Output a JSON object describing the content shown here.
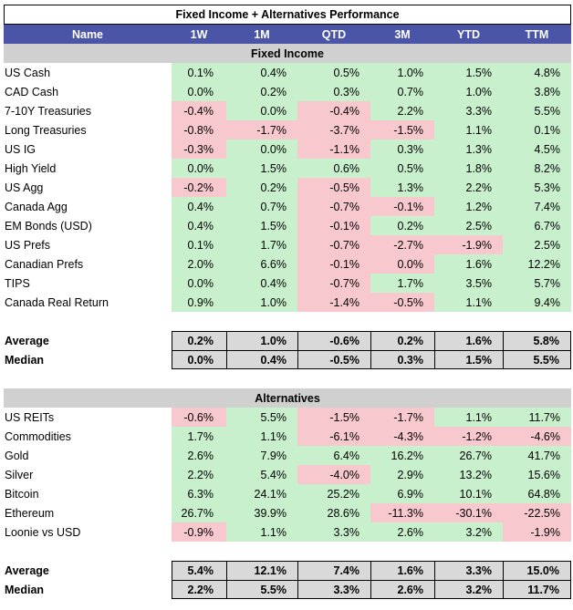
{
  "title": "Fixed Income + Alternatives Performance",
  "columns": [
    "Name",
    "1W",
    "1M",
    "QTD",
    "3M",
    "YTD",
    "TTM"
  ],
  "sections": [
    {
      "name": "Fixed Income",
      "rows": [
        {
          "name": "US Cash",
          "values": [
            "0.1%",
            "0.4%",
            "0.5%",
            "1.0%",
            "1.5%",
            "4.8%"
          ],
          "colors": [
            "g",
            "g",
            "g",
            "g",
            "g",
            "g"
          ]
        },
        {
          "name": "CAD Cash",
          "values": [
            "0.0%",
            "0.2%",
            "0.3%",
            "0.7%",
            "1.0%",
            "3.8%"
          ],
          "colors": [
            "g",
            "g",
            "g",
            "g",
            "g",
            "g"
          ]
        },
        {
          "name": "7-10Y Treasuries",
          "values": [
            "-0.4%",
            "0.0%",
            "-0.4%",
            "2.2%",
            "3.3%",
            "5.5%"
          ],
          "colors": [
            "r",
            "g",
            "r",
            "g",
            "g",
            "g"
          ]
        },
        {
          "name": "Long Treasuries",
          "values": [
            "-0.8%",
            "-1.7%",
            "-3.7%",
            "-1.5%",
            "1.1%",
            "0.1%"
          ],
          "colors": [
            "r",
            "r",
            "r",
            "r",
            "g",
            "g"
          ]
        },
        {
          "name": "US IG",
          "values": [
            "-0.3%",
            "0.0%",
            "-1.1%",
            "0.3%",
            "1.3%",
            "4.5%"
          ],
          "colors": [
            "r",
            "g",
            "r",
            "g",
            "g",
            "g"
          ]
        },
        {
          "name": "High Yield",
          "values": [
            "0.0%",
            "1.5%",
            "0.6%",
            "0.5%",
            "1.8%",
            "8.2%"
          ],
          "colors": [
            "g",
            "g",
            "g",
            "g",
            "g",
            "g"
          ]
        },
        {
          "name": "US Agg",
          "values": [
            "-0.2%",
            "0.2%",
            "-0.5%",
            "1.3%",
            "2.2%",
            "5.3%"
          ],
          "colors": [
            "r",
            "g",
            "r",
            "g",
            "g",
            "g"
          ]
        },
        {
          "name": "Canada Agg",
          "values": [
            "0.4%",
            "0.7%",
            "-0.7%",
            "-0.1%",
            "1.2%",
            "7.4%"
          ],
          "colors": [
            "g",
            "g",
            "r",
            "r",
            "g",
            "g"
          ]
        },
        {
          "name": "EM Bonds (USD)",
          "values": [
            "0.4%",
            "1.5%",
            "-0.1%",
            "0.2%",
            "2.5%",
            "6.7%"
          ],
          "colors": [
            "g",
            "g",
            "r",
            "g",
            "g",
            "g"
          ]
        },
        {
          "name": "US Prefs",
          "values": [
            "0.1%",
            "1.7%",
            "-0.7%",
            "-2.7%",
            "-1.9%",
            "2.5%"
          ],
          "colors": [
            "g",
            "g",
            "r",
            "r",
            "r",
            "g"
          ]
        },
        {
          "name": "Canadian Prefs",
          "values": [
            "2.0%",
            "6.6%",
            "-0.1%",
            "0.0%",
            "1.6%",
            "12.2%"
          ],
          "colors": [
            "g",
            "g",
            "r",
            "r",
            "g",
            "g"
          ]
        },
        {
          "name": "TIPS",
          "values": [
            "0.0%",
            "0.4%",
            "-0.7%",
            "1.7%",
            "3.5%",
            "5.7%"
          ],
          "colors": [
            "g",
            "g",
            "r",
            "g",
            "g",
            "g"
          ]
        },
        {
          "name": "Canada Real Return",
          "values": [
            "0.9%",
            "1.0%",
            "-1.4%",
            "-0.5%",
            "1.1%",
            "9.4%"
          ],
          "colors": [
            "g",
            "g",
            "r",
            "r",
            "g",
            "g"
          ]
        }
      ],
      "summary": [
        {
          "label": "Average",
          "values": [
            "0.2%",
            "1.0%",
            "-0.6%",
            "0.2%",
            "1.6%",
            "5.8%"
          ]
        },
        {
          "label": "Median",
          "values": [
            "0.0%",
            "0.4%",
            "-0.5%",
            "0.3%",
            "1.5%",
            "5.5%"
          ]
        }
      ]
    },
    {
      "name": "Alternatives",
      "rows": [
        {
          "name": "US REITs",
          "values": [
            "-0.6%",
            "5.5%",
            "-1.5%",
            "-1.7%",
            "1.1%",
            "11.7%"
          ],
          "colors": [
            "r",
            "g",
            "r",
            "r",
            "g",
            "g"
          ]
        },
        {
          "name": "Commodities",
          "values": [
            "1.7%",
            "1.1%",
            "-6.1%",
            "-4.3%",
            "-1.2%",
            "-4.6%"
          ],
          "colors": [
            "g",
            "g",
            "r",
            "r",
            "r",
            "r"
          ]
        },
        {
          "name": "Gold",
          "values": [
            "2.6%",
            "7.9%",
            "6.4%",
            "16.2%",
            "26.7%",
            "41.7%"
          ],
          "colors": [
            "g",
            "g",
            "g",
            "g",
            "g",
            "g"
          ]
        },
        {
          "name": "Silver",
          "values": [
            "2.2%",
            "5.4%",
            "-4.0%",
            "2.9%",
            "13.2%",
            "15.6%"
          ],
          "colors": [
            "g",
            "g",
            "r",
            "g",
            "g",
            "g"
          ]
        },
        {
          "name": "Bitcoin",
          "values": [
            "6.3%",
            "24.1%",
            "25.2%",
            "6.9%",
            "10.1%",
            "64.8%"
          ],
          "colors": [
            "g",
            "g",
            "g",
            "g",
            "g",
            "g"
          ]
        },
        {
          "name": "Ethereum",
          "values": [
            "26.7%",
            "39.9%",
            "28.6%",
            "-11.3%",
            "-30.1%",
            "-22.5%"
          ],
          "colors": [
            "g",
            "g",
            "g",
            "r",
            "r",
            "r"
          ]
        },
        {
          "name": "Loonie vs USD",
          "values": [
            "-0.9%",
            "1.1%",
            "3.3%",
            "2.6%",
            "3.2%",
            "-1.9%"
          ],
          "colors": [
            "r",
            "g",
            "g",
            "g",
            "g",
            "r"
          ]
        }
      ],
      "summary": [
        {
          "label": "Average",
          "values": [
            "5.4%",
            "12.1%",
            "7.4%",
            "1.6%",
            "3.3%",
            "15.0%"
          ]
        },
        {
          "label": "Median",
          "values": [
            "2.2%",
            "5.5%",
            "3.3%",
            "2.6%",
            "3.2%",
            "11.7%"
          ]
        }
      ]
    }
  ]
}
